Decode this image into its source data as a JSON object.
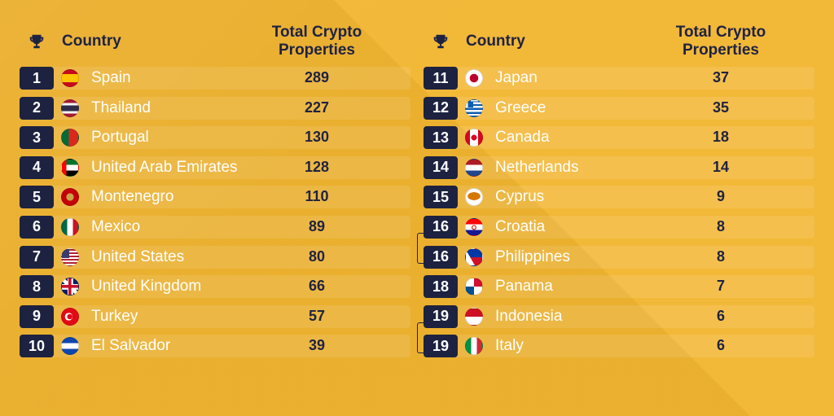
{
  "header": {
    "country_label": "Country",
    "total_label": "Total Crypto\nProperties",
    "icon": "trophy-icon"
  },
  "left": [
    {
      "rank": "1",
      "name": "Spain",
      "value": "289",
      "flag": "spain-flag-icon"
    },
    {
      "rank": "2",
      "name": "Thailand",
      "value": "227",
      "flag": "thailand-flag-icon"
    },
    {
      "rank": "3",
      "name": "Portugal",
      "value": "130",
      "flag": "portugal-flag-icon"
    },
    {
      "rank": "4",
      "name": "United Arab Emirates",
      "value": "128",
      "flag": "uae-flag-icon"
    },
    {
      "rank": "5",
      "name": "Montenegro",
      "value": "110",
      "flag": "montenegro-flag-icon"
    },
    {
      "rank": "6",
      "name": "Mexico",
      "value": "89",
      "flag": "mexico-flag-icon"
    },
    {
      "rank": "7",
      "name": "United States",
      "value": "80",
      "flag": "usa-flag-icon"
    },
    {
      "rank": "8",
      "name": "United Kingdom",
      "value": "66",
      "flag": "uk-flag-icon"
    },
    {
      "rank": "9",
      "name": "Turkey",
      "value": "57",
      "flag": "turkey-flag-icon"
    },
    {
      "rank": "10",
      "name": "El Salvador",
      "value": "39",
      "flag": "el-salvador-flag-icon"
    }
  ],
  "right": [
    {
      "rank": "11",
      "name": "Japan",
      "value": "37",
      "flag": "japan-flag-icon"
    },
    {
      "rank": "12",
      "name": "Greece",
      "value": "35",
      "flag": "greece-flag-icon"
    },
    {
      "rank": "13",
      "name": "Canada",
      "value": "18",
      "flag": "canada-flag-icon"
    },
    {
      "rank": "14",
      "name": "Netherlands",
      "value": "14",
      "flag": "netherlands-flag-icon"
    },
    {
      "rank": "15",
      "name": "Cyprus",
      "value": "9",
      "flag": "cyprus-flag-icon"
    },
    {
      "rank": "16",
      "name": "Croatia",
      "value": "8",
      "flag": "croatia-flag-icon"
    },
    {
      "rank": "16",
      "name": "Philippines",
      "value": "8",
      "flag": "philippines-flag-icon"
    },
    {
      "rank": "18",
      "name": "Panama",
      "value": "7",
      "flag": "panama-flag-icon"
    },
    {
      "rank": "19",
      "name": "Indonesia",
      "value": "6",
      "flag": "indonesia-flag-icon"
    },
    {
      "rank": "19",
      "name": "Italy",
      "value": "6",
      "flag": "italy-flag-icon"
    }
  ],
  "colors": {
    "background": "#f2b530",
    "rank_badge": "#1d2240",
    "name_text": "#ffffff",
    "value_text": "#1e2242"
  }
}
